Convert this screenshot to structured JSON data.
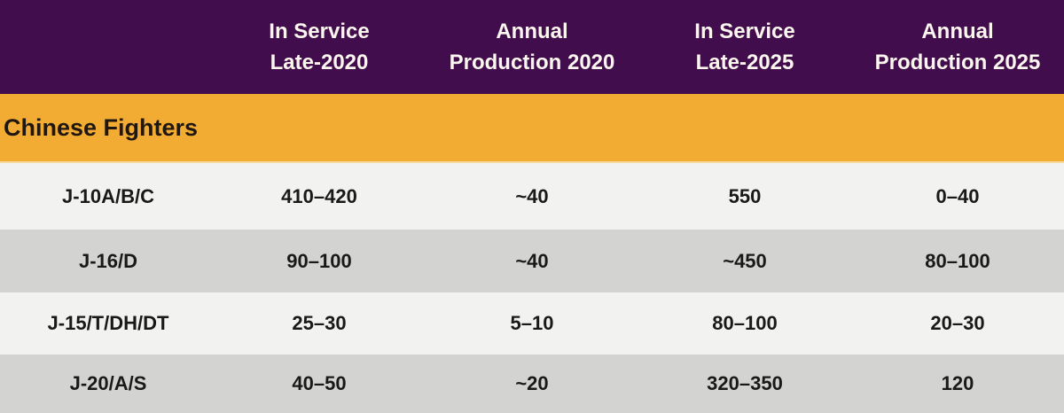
{
  "chart_data": {
    "type": "table",
    "title": "",
    "header": {
      "columns": [
        "In Service\nLate-2020",
        "Annual\nProduction 2020",
        "In Service\nLate-2025",
        "Annual\nProduction 2025"
      ]
    },
    "section_label": "Chinese Fighters",
    "rows": [
      {
        "label": "J-10A/B/C",
        "values": [
          "410–420",
          "~40",
          "550",
          "0–40"
        ]
      },
      {
        "label": "J-16/D",
        "values": [
          "90–100",
          "~40",
          "~450",
          "80–100"
        ]
      },
      {
        "label": "J-15/T/DH/DT",
        "values": [
          "25–30",
          "5–10",
          "80–100",
          "20–30"
        ]
      },
      {
        "label": "J-20/A/S",
        "values": [
          "40–50",
          "~20",
          "320–350",
          "120"
        ]
      }
    ]
  },
  "colors": {
    "header_bg": "#420d4c",
    "header_text": "#fbf6ee",
    "section_bg": "#f3ac33",
    "section_border_bottom": "#f8d99e",
    "section_text": "#201710",
    "row_light_bg": "#f2f2f1",
    "row_dark_bg": "#d3d3d1",
    "body_text": "#191919"
  }
}
